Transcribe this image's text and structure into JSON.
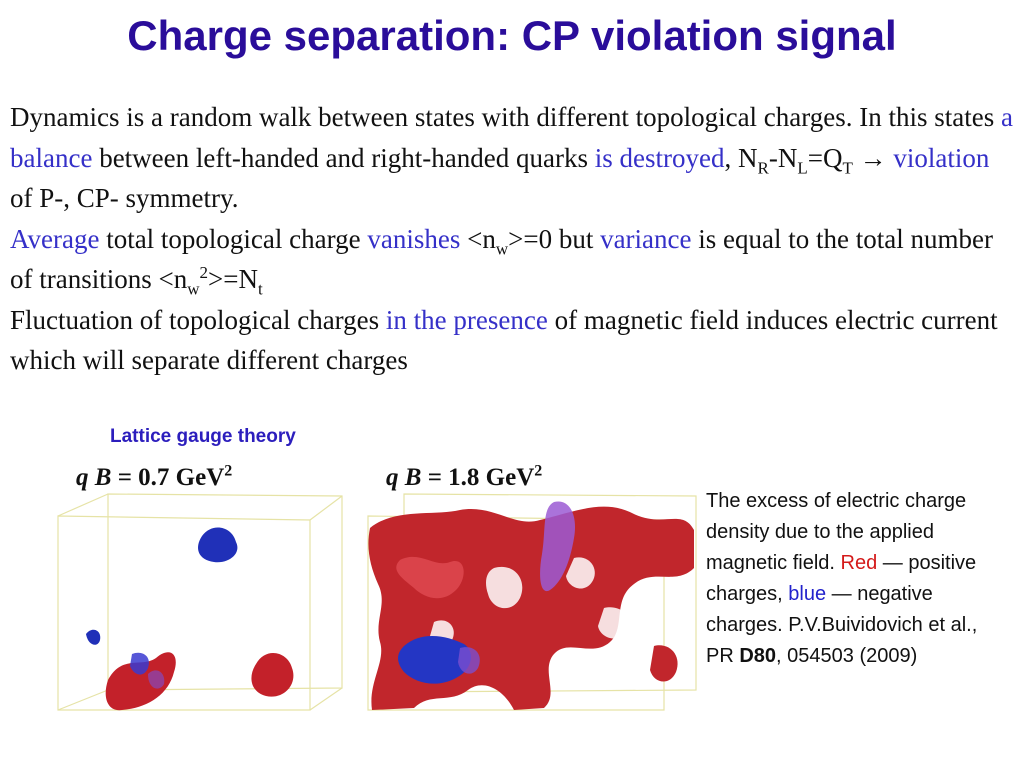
{
  "title": "Charge separation: CP violation signal",
  "body": {
    "p1": {
      "s1": "Dynamics is a random walk between states with different topological charges. In this states ",
      "h1": "a balance",
      "s2": " between left-handed and right-handed quarks ",
      "h2": "is destroyed",
      "s3": ",  N",
      "subR": "R",
      "s4": "-N",
      "subL": "L",
      "s5": "=Q",
      "subT": "T",
      "s6": "  → ",
      "h3": "violation",
      "s7": " of P-, CP- symmetry."
    },
    "p2": {
      "h1": "Average",
      "s1": " total topological charge ",
      "h2": "vanishes",
      "s2": " <n",
      "sub_w1": "w",
      "s3": ">=0 but ",
      "h3": "variance",
      "s4": " is equal to the total number of transitions  <n",
      "sub_w2": "w",
      "sup2": "2",
      "s5": ">=N",
      "sub_t": "t"
    },
    "p3": {
      "s1": "Fluctuation of topological charges ",
      "h1": "in the presence",
      "s2": " of magnetic field induces electric current which will separate different charges"
    }
  },
  "figure": {
    "heading": "Lattice gauge theory",
    "panel_left": {
      "q": "q",
      "B": "B",
      "eq": " = 0.7 GeV",
      "sup": "2"
    },
    "panel_right": {
      "q": "q",
      "B": "B",
      "eq": " = 1.8 GeV",
      "sup": "2"
    }
  },
  "caption": {
    "c1": "The excess of electric charge density due to the applied magnetic field. ",
    "red": "Red",
    "c2": " — positive charges, ",
    "blue": "blue",
    "c3": " — negative charges. P.V.Buividovich et al., PR ",
    "bold": "D80",
    "c4": ", 054503 (2009)"
  },
  "colors": {
    "title": "#2a0d9a",
    "highlight": "#3530c8",
    "positive": "#c0242a",
    "negative": "#2233cc"
  }
}
